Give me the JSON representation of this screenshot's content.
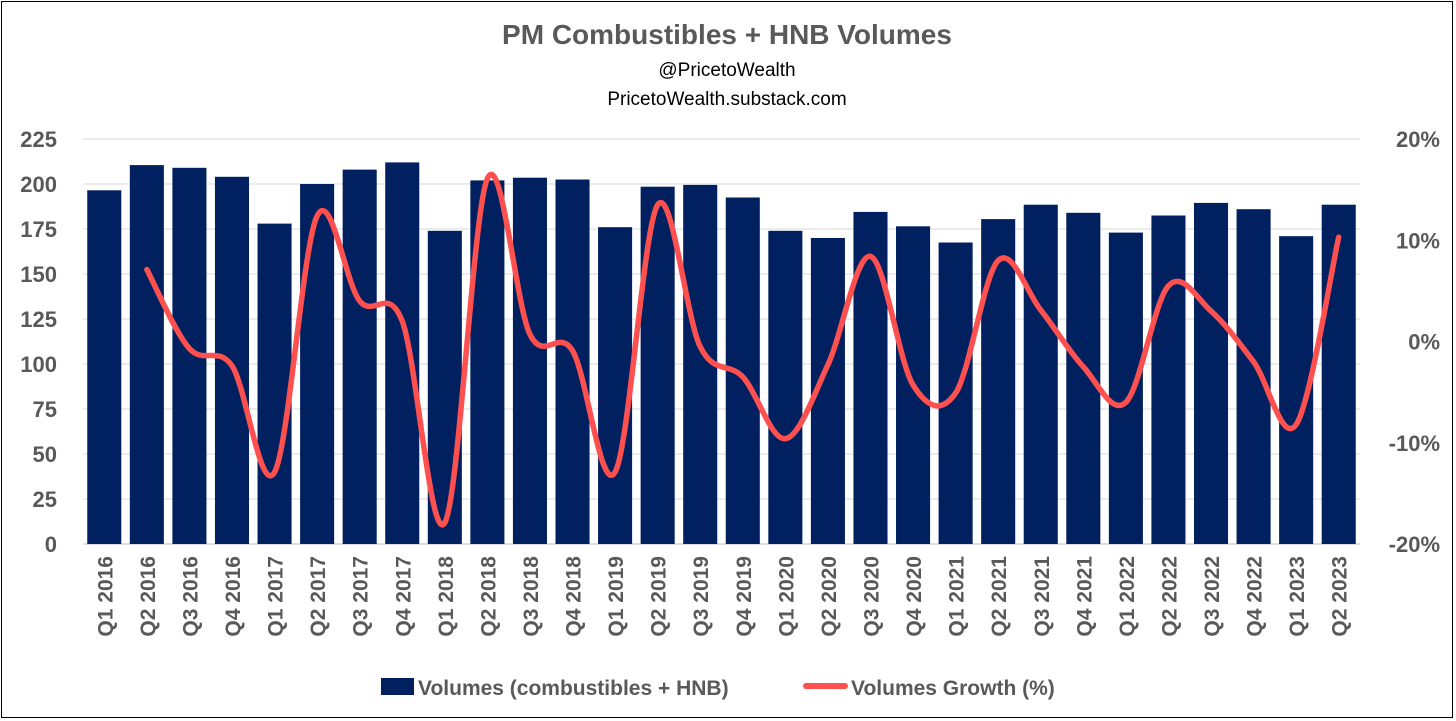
{
  "chart_data": {
    "type": "bar",
    "title": "PM Combustibles + HNB Volumes",
    "subtitle_lines": [
      "@PricetoWealth",
      "PricetoWealth.substack.com"
    ],
    "categories": [
      "Q1 2016",
      "Q2 2016",
      "Q3 2016",
      "Q4 2016",
      "Q1 2017",
      "Q2 2017",
      "Q3 2017",
      "Q4 2017",
      "Q1 2018",
      "Q2 2018",
      "Q3 2018",
      "Q4 2018",
      "Q1 2019",
      "Q2 2019",
      "Q3 2019",
      "Q4 2019",
      "Q1 2020",
      "Q2 2020",
      "Q3 2020",
      "Q4 2020",
      "Q1 2021",
      "Q2 2021",
      "Q3 2021",
      "Q4 2021",
      "Q1 2022",
      "Q2 2022",
      "Q3 2022",
      "Q4 2022",
      "Q1 2023",
      "Q2 2023"
    ],
    "series": [
      {
        "name": "Volumes (combustibles + HNB)",
        "type": "bar",
        "axis": "left",
        "color": "#002060",
        "values": [
          196.5,
          210.5,
          209,
          204,
          178,
          200,
          208,
          212,
          174,
          202,
          203.5,
          202.5,
          176,
          198.5,
          199.5,
          192.5,
          174,
          170,
          184.5,
          176.5,
          167.5,
          180.5,
          188.5,
          184,
          173,
          182.5,
          189.5,
          186,
          171,
          188.5
        ]
      },
      {
        "name": "Volumes Growth (%)",
        "type": "line",
        "axis": "right",
        "color": "#FF5050",
        "values": [
          null,
          7.1,
          -0.7,
          -2.4,
          -12.9,
          12.4,
          4.0,
          2.0,
          -17.9,
          16.1,
          0.7,
          -0.9,
          -12.9,
          13.5,
          -0.5,
          -3.5,
          -9.6,
          -2.3,
          8.4,
          -4.3,
          -5.1,
          8.0,
          3.1,
          -2.5,
          -6.0,
          5.5,
          3.0,
          -2.0,
          -8.2,
          10.3
        ]
      }
    ],
    "y_left": {
      "min": 0,
      "max": 225,
      "ticks": [
        "0",
        "25",
        "50",
        "75",
        "100",
        "125",
        "150",
        "175",
        "200",
        "225"
      ]
    },
    "y_right": {
      "min": -20,
      "max": 20,
      "ticks": [
        "-20%",
        "-10%",
        "0%",
        "10%",
        "20%"
      ]
    },
    "grid": true,
    "legend_position": "bottom"
  }
}
